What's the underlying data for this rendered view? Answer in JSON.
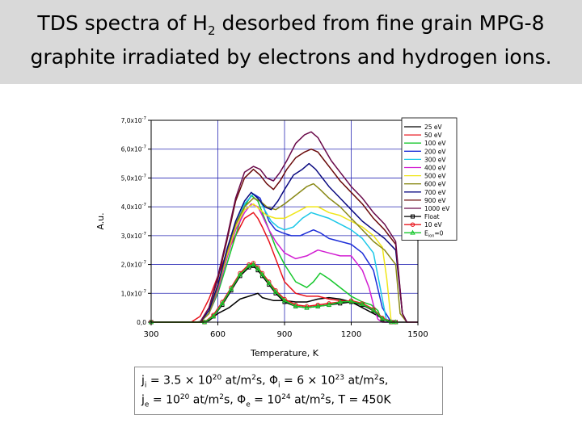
{
  "title": {
    "line1_prefix": "TDS spectra of H",
    "line1_sub": "2",
    "line1_suffix": " desorbed from fine grain MPG-8",
    "line2": "graphite irradiated by electrons and hydrogen ions."
  },
  "params": {
    "ji_sym": "j",
    "ji_sub": "i",
    "ji_val": " = 3.5 × 10",
    "ji_exp": "20",
    "ji_unit": " at/m",
    "ji_unit_exp": "2",
    "ji_unit_end": "s, ",
    "phii_sym": "Φ",
    "phii_sub": "i",
    "phii_val": " = 6 × 10",
    "phii_exp": "23",
    "phii_unit": " at/m",
    "phii_unit_exp": "2",
    "phii_unit_end": "s,",
    "je_sym": "j",
    "je_sub": "e",
    "je_val": " = 10",
    "je_exp": "20",
    "je_unit": " at/m",
    "je_unit_exp": "2",
    "je_unit_end": "s,  ",
    "phie_sym": "Φ",
    "phie_sub": "e",
    "phie_val": " = 10",
    "phie_exp": "24",
    "phie_unit": " at/m",
    "phie_unit_exp": "2",
    "phie_unit_end": "s, T = 450K"
  },
  "chart_data": {
    "type": "line",
    "xlabel": "Temperature, K",
    "ylabel": "A.u.",
    "xlim": [
      300,
      1500
    ],
    "ylim": [
      0,
      7.0
    ],
    "y_unit_label": "x10",
    "y_unit_exp": "-7",
    "xticks": [
      "300",
      "600",
      "900",
      "1200",
      "1500"
    ],
    "xtick_values": [
      300,
      600,
      900,
      1200,
      1500
    ],
    "yticks": [
      {
        "value": 0,
        "mant": "0,0",
        "exp": ""
      },
      {
        "value": 1,
        "mant": "1,0x10",
        "exp": "-7"
      },
      {
        "value": 2,
        "mant": "2,0x10",
        "exp": "-7"
      },
      {
        "value": 3,
        "mant": "3,0x10",
        "exp": "-7"
      },
      {
        "value": 4,
        "mant": "4,0x10",
        "exp": "-7"
      },
      {
        "value": 5,
        "mant": "5,0x10",
        "exp": "-7"
      },
      {
        "value": 6,
        "mant": "6,0x10",
        "exp": "-7"
      },
      {
        "value": 7,
        "mant": "7,0x10",
        "exp": "-7"
      }
    ],
    "grid": true,
    "legend_position": "top-right",
    "series": [
      {
        "name": "25 eV",
        "color": "#000000",
        "marker": "none",
        "x": [
          300,
          500,
          560,
          600,
          650,
          700,
          740,
          780,
          800,
          850,
          900,
          950,
          1000,
          1050,
          1100,
          1150,
          1200,
          1250,
          1300,
          1350,
          1400,
          1420,
          1450
        ],
        "y": [
          0,
          0,
          0.05,
          0.3,
          0.5,
          0.8,
          0.9,
          1.0,
          0.85,
          0.75,
          0.75,
          0.7,
          0.7,
          0.8,
          0.85,
          0.8,
          0.7,
          0.5,
          0.3,
          0.1,
          0,
          0,
          0
        ]
      },
      {
        "name": "50 eV",
        "color": "#e8141c",
        "marker": "none",
        "x": [
          300,
          480,
          520,
          560,
          600,
          640,
          680,
          720,
          760,
          780,
          800,
          830,
          860,
          900,
          950,
          1000,
          1050,
          1100,
          1150,
          1200,
          1250,
          1300,
          1330,
          1350,
          1400
        ],
        "y": [
          0,
          0,
          0.2,
          0.8,
          1.6,
          2.4,
          3.0,
          3.6,
          3.8,
          3.6,
          3.3,
          2.8,
          2.2,
          1.4,
          1.0,
          0.9,
          0.9,
          0.8,
          0.75,
          0.7,
          0.6,
          0.4,
          0.2,
          0,
          0
        ]
      },
      {
        "name": "100 eV",
        "color": "#16c72c",
        "marker": "none",
        "x": [
          300,
          520,
          560,
          600,
          640,
          680,
          720,
          750,
          780,
          800,
          830,
          860,
          900,
          950,
          1000,
          1030,
          1060,
          1100,
          1150,
          1200,
          1250,
          1290,
          1320,
          1340,
          1400
        ],
        "y": [
          0,
          0,
          0.3,
          1.0,
          2.0,
          3.0,
          4.0,
          4.4,
          4.2,
          3.8,
          3.2,
          2.6,
          2.0,
          1.4,
          1.2,
          1.4,
          1.7,
          1.5,
          1.2,
          0.9,
          0.7,
          0.6,
          0.4,
          0,
          0
        ]
      },
      {
        "name": "200 eV",
        "color": "#1d2ed8",
        "marker": "none",
        "x": [
          300,
          520,
          560,
          600,
          640,
          680,
          720,
          760,
          790,
          810,
          830,
          860,
          890,
          930,
          970,
          1000,
          1030,
          1060,
          1100,
          1150,
          1200,
          1250,
          1300,
          1340,
          1380,
          1400
        ],
        "y": [
          0,
          0,
          0.3,
          1.1,
          2.2,
          3.3,
          4.1,
          4.45,
          4.3,
          3.9,
          3.5,
          3.2,
          3.1,
          3.0,
          3.0,
          3.1,
          3.2,
          3.1,
          2.9,
          2.8,
          2.7,
          2.4,
          1.8,
          0.5,
          0,
          0
        ]
      },
      {
        "name": "300 eV",
        "color": "#1cc8e8",
        "marker": "none",
        "x": [
          300,
          520,
          560,
          600,
          640,
          680,
          720,
          760,
          790,
          810,
          840,
          870,
          900,
          940,
          980,
          1020,
          1060,
          1100,
          1150,
          1200,
          1250,
          1300,
          1330,
          1360,
          1400
        ],
        "y": [
          0,
          0,
          0.3,
          1.2,
          2.4,
          3.4,
          4.1,
          4.45,
          4.2,
          3.9,
          3.5,
          3.3,
          3.2,
          3.3,
          3.6,
          3.8,
          3.7,
          3.6,
          3.4,
          3.2,
          2.9,
          2.4,
          1.2,
          0,
          0
        ]
      },
      {
        "name": "400 eV",
        "color": "#d21ed2",
        "marker": "none",
        "x": [
          300,
          520,
          560,
          600,
          640,
          680,
          720,
          750,
          780,
          800,
          830,
          860,
          900,
          950,
          1000,
          1050,
          1100,
          1150,
          1200,
          1250,
          1280,
          1300,
          1320,
          1340,
          1400
        ],
        "y": [
          0,
          0,
          0.3,
          1.1,
          2.2,
          3.2,
          3.8,
          4.1,
          4.0,
          3.7,
          3.2,
          2.8,
          2.4,
          2.2,
          2.3,
          2.5,
          2.4,
          2.3,
          2.3,
          1.8,
          1.2,
          0.6,
          0.1,
          0,
          0
        ]
      },
      {
        "name": "500 eV",
        "color": "#f0e61a",
        "marker": "none",
        "x": [
          300,
          520,
          560,
          600,
          640,
          680,
          720,
          760,
          790,
          820,
          860,
          900,
          950,
          1000,
          1050,
          1100,
          1150,
          1200,
          1250,
          1300,
          1340,
          1360,
          1380,
          1400
        ],
        "y": [
          0,
          0,
          0.3,
          1.2,
          2.3,
          3.3,
          3.9,
          4.1,
          3.9,
          3.7,
          3.6,
          3.6,
          3.8,
          4.0,
          4.0,
          3.8,
          3.7,
          3.5,
          3.3,
          3.0,
          2.6,
          1.5,
          0,
          0
        ]
      },
      {
        "name": "600 eV",
        "color": "#8a8a18",
        "marker": "none",
        "x": [
          300,
          520,
          560,
          600,
          640,
          680,
          720,
          760,
          790,
          820,
          860,
          900,
          950,
          1000,
          1030,
          1060,
          1100,
          1150,
          1200,
          1250,
          1300,
          1350,
          1400,
          1420,
          1450
        ],
        "y": [
          0,
          0,
          0.3,
          1.2,
          2.4,
          3.4,
          4.0,
          4.3,
          4.2,
          4.0,
          3.9,
          4.1,
          4.4,
          4.7,
          4.8,
          4.6,
          4.3,
          4.0,
          3.6,
          3.2,
          2.8,
          2.5,
          2.0,
          0.3,
          0
        ]
      },
      {
        "name": "700 eV",
        "color": "#0a0a80",
        "marker": "none",
        "x": [
          300,
          520,
          560,
          600,
          640,
          680,
          720,
          750,
          780,
          810,
          840,
          870,
          900,
          940,
          980,
          1010,
          1040,
          1070,
          1100,
          1150,
          1200,
          1250,
          1300,
          1350,
          1400,
          1430,
          1450
        ],
        "y": [
          0,
          0,
          0.4,
          1.3,
          2.5,
          3.5,
          4.2,
          4.5,
          4.3,
          4.0,
          3.9,
          4.2,
          4.6,
          5.1,
          5.3,
          5.5,
          5.3,
          5.0,
          4.7,
          4.3,
          3.9,
          3.5,
          3.2,
          2.9,
          2.5,
          0.3,
          0
        ]
      },
      {
        "name": "900 eV",
        "color": "#6a0a0a",
        "marker": "none",
        "x": [
          300,
          520,
          560,
          600,
          640,
          680,
          720,
          760,
          790,
          820,
          850,
          880,
          910,
          950,
          990,
          1020,
          1050,
          1080,
          1110,
          1150,
          1200,
          1250,
          1300,
          1350,
          1400,
          1430,
          1450,
          1500
        ],
        "y": [
          0,
          0,
          0.5,
          1.5,
          2.8,
          4.2,
          5.0,
          5.3,
          5.1,
          4.8,
          4.6,
          4.9,
          5.3,
          5.7,
          5.9,
          6.0,
          5.9,
          5.6,
          5.3,
          4.9,
          4.5,
          4.1,
          3.6,
          3.2,
          2.7,
          0.3,
          0,
          0
        ]
      },
      {
        "name": "1000 eV",
        "color": "#6a0a4a",
        "marker": "none",
        "x": [
          300,
          520,
          560,
          600,
          640,
          680,
          720,
          760,
          790,
          820,
          850,
          880,
          910,
          950,
          990,
          1020,
          1050,
          1080,
          1110,
          1150,
          1200,
          1250,
          1300,
          1350,
          1400,
          1430,
          1450,
          1500
        ],
        "y": [
          0,
          0,
          0.5,
          1.6,
          2.9,
          4.3,
          5.2,
          5.4,
          5.3,
          5.0,
          4.9,
          5.2,
          5.6,
          6.2,
          6.5,
          6.6,
          6.4,
          6.0,
          5.6,
          5.2,
          4.7,
          4.3,
          3.8,
          3.4,
          2.8,
          0.3,
          0,
          0
        ]
      },
      {
        "name": "Float",
        "color": "#000000",
        "marker": "square",
        "x": [
          300,
          540,
          580,
          620,
          660,
          700,
          740,
          760,
          780,
          800,
          830,
          860,
          900,
          950,
          1000,
          1050,
          1100,
          1150,
          1200,
          1250,
          1300,
          1340,
          1380,
          1400
        ],
        "y": [
          0,
          0,
          0.2,
          0.6,
          1.1,
          1.6,
          1.9,
          1.95,
          1.8,
          1.6,
          1.3,
          1.0,
          0.7,
          0.55,
          0.5,
          0.55,
          0.6,
          0.65,
          0.7,
          0.6,
          0.4,
          0.1,
          0,
          0
        ]
      },
      {
        "name": "10 eV",
        "color": "#e8141c",
        "marker": "circle",
        "x": [
          300,
          540,
          580,
          620,
          660,
          700,
          740,
          760,
          780,
          800,
          830,
          860,
          900,
          950,
          1000,
          1050,
          1100,
          1150,
          1200,
          1250,
          1300,
          1340,
          1380,
          1400
        ],
        "y": [
          0,
          0,
          0.25,
          0.7,
          1.2,
          1.7,
          2.0,
          2.05,
          1.9,
          1.7,
          1.4,
          1.1,
          0.8,
          0.6,
          0.55,
          0.6,
          0.65,
          0.7,
          0.75,
          0.65,
          0.45,
          0.15,
          0,
          0
        ]
      },
      {
        "name": "E",
        "sub": "ion",
        "suffix": "=0",
        "color": "#16c72c",
        "marker": "triangle",
        "x": [
          300,
          540,
          580,
          620,
          660,
          700,
          740,
          760,
          780,
          800,
          830,
          860,
          900,
          950,
          1000,
          1050,
          1100,
          1150,
          1200,
          1250,
          1300,
          1340,
          1380,
          1400
        ],
        "y": [
          0,
          0,
          0.2,
          0.65,
          1.15,
          1.65,
          1.95,
          2.0,
          1.85,
          1.65,
          1.35,
          1.05,
          0.75,
          0.55,
          0.5,
          0.55,
          0.6,
          0.7,
          0.72,
          0.62,
          0.42,
          0.12,
          0,
          0
        ]
      }
    ]
  }
}
